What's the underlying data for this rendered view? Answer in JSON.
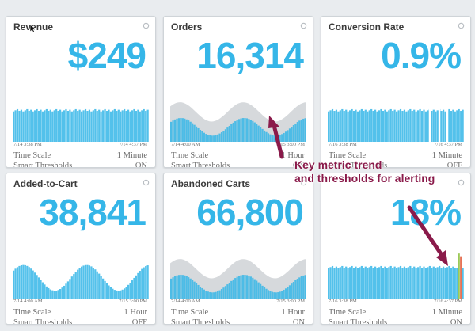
{
  "cards": [
    {
      "title": "Revenue",
      "value": "$249",
      "t_left": "7/14 3:38 PM",
      "t_right": "7/14 4:37 PM",
      "scale_label": "Time Scale",
      "scale_value": "1 Minute",
      "thresh_label": "Smart Thresholds",
      "thresh_value": "ON",
      "trend": "flat-bars"
    },
    {
      "title": "Orders",
      "value": "16,314",
      "t_left": "7/14 4:00 AM",
      "t_right": "7/15 3:00 PM",
      "scale_label": "Time Scale",
      "scale_value": "1 Hour",
      "thresh_label": "Smart Thresholds",
      "thresh_value": "ON",
      "trend": "wave-with-band"
    },
    {
      "title": "Conversion Rate",
      "value": "0.9%",
      "t_left": "7/16 3:38 PM",
      "t_right": "7/16 4:37 PM",
      "scale_label": "Time Scale",
      "scale_value": "1 Minute",
      "thresh_label": "Smart Thresholds",
      "thresh_value": "OFF",
      "trend": "flat-bars"
    },
    {
      "title": "Added-to-Cart",
      "value": "38,841",
      "t_left": "7/14 4:00 AM",
      "t_right": "7/15 3:00 PM",
      "scale_label": "Time Scale",
      "scale_value": "1 Hour",
      "thresh_label": "Smart Thresholds",
      "thresh_value": "OFF",
      "trend": "wave"
    },
    {
      "title": "Abandoned Carts",
      "value": "66,800",
      "t_left": "7/14 4:00 AM",
      "t_right": "7/15 3:00 PM",
      "scale_label": "Time Scale",
      "scale_value": "1 Hour",
      "thresh_label": "Smart Thresholds",
      "thresh_value": "ON",
      "trend": "wave-with-band"
    },
    {
      "title": "",
      "value": "18%",
      "t_left": "7/16 3:38 PM",
      "t_right": "7/16 4:37 PM",
      "scale_label": "Time Scale",
      "scale_value": "1 Minute",
      "thresh_label": "Smart Thresholds",
      "thresh_value": "ON",
      "trend": "flat-bars-with-spike"
    }
  ],
  "annotation": {
    "line1": "Key metric trend",
    "line2": "and thresholds for alerting"
  },
  "colors": {
    "accent": "#35b6e8",
    "band": "#d6d9dc",
    "annotation": "#8a1a4a",
    "spike_green": "#8bbf3a",
    "spike_red": "#e05a3a"
  }
}
